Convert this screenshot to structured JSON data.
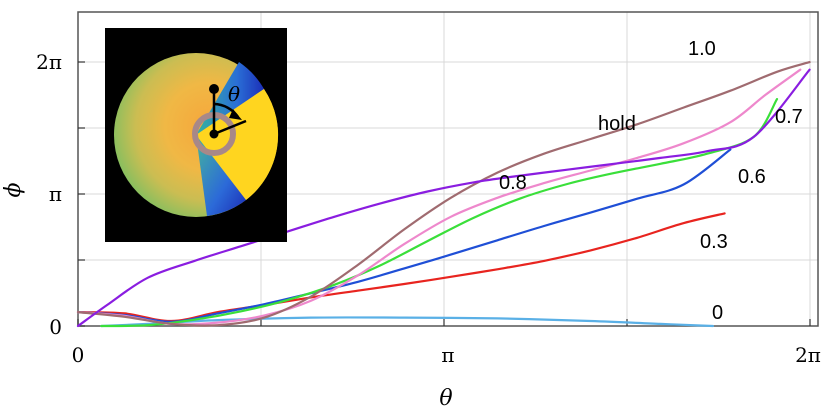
{
  "chart_data": {
    "type": "line",
    "xlabel": "θ",
    "ylabel": "ϕ",
    "xlim": [
      0,
      6.2832
    ],
    "ylim": [
      0,
      6.2832
    ],
    "x_ticks": [
      {
        "value": 0,
        "label": "0"
      },
      {
        "value": 3.1416,
        "label": "π"
      },
      {
        "value": 6.2832,
        "label": "2π"
      }
    ],
    "y_ticks": [
      {
        "value": 0,
        "label": "0"
      },
      {
        "value": 3.1416,
        "label": "π"
      },
      {
        "value": 6.2832,
        "label": "2π"
      }
    ],
    "grid": true,
    "series": [
      {
        "name": "0",
        "color": "#5ab0e6",
        "x": [
          0.2,
          0.6,
          1.2,
          2.0,
          2.8,
          3.6,
          4.4,
          5.0,
          5.45
        ],
        "y": [
          0.0,
          0.05,
          0.14,
          0.2,
          0.2,
          0.18,
          0.12,
          0.05,
          0.0
        ]
      },
      {
        "name": "0.3",
        "color": "#e8241f",
        "x": [
          0.0,
          0.4,
          0.8,
          1.2,
          1.6,
          2.0,
          2.4,
          2.8,
          3.2,
          3.6,
          4.0,
          4.4,
          4.8,
          5.2,
          5.55
        ],
        "y": [
          0.33,
          0.3,
          0.12,
          0.33,
          0.5,
          0.68,
          0.84,
          1.0,
          1.17,
          1.35,
          1.55,
          1.8,
          2.1,
          2.45,
          2.68
        ]
      },
      {
        "name": "0.6",
        "color": "#1f4fd6",
        "x": [
          0.0,
          0.4,
          0.8,
          1.2,
          1.6,
          2.0,
          2.4,
          2.8,
          3.2,
          3.6,
          4.0,
          4.4,
          4.8,
          5.2,
          5.6
        ],
        "y": [
          0.33,
          0.26,
          0.1,
          0.3,
          0.52,
          0.78,
          1.05,
          1.37,
          1.7,
          2.04,
          2.38,
          2.7,
          3.03,
          3.37,
          4.2
        ]
      },
      {
        "name": "0.7",
        "color": "#3adf3a",
        "x": [
          0.2,
          0.6,
          1.0,
          1.4,
          1.8,
          2.2,
          2.6,
          3.0,
          3.4,
          3.8,
          4.2,
          4.6,
          5.0,
          5.4,
          5.8,
          6.0
        ],
        "y": [
          0.0,
          0.02,
          0.15,
          0.35,
          0.62,
          0.98,
          1.45,
          2.02,
          2.58,
          3.04,
          3.38,
          3.64,
          3.86,
          4.1,
          4.5,
          5.4
        ]
      },
      {
        "name": "0.8",
        "color": "#ee88cc",
        "x": [
          0.0,
          0.4,
          0.8,
          1.2,
          1.6,
          2.0,
          2.4,
          2.8,
          3.2,
          3.6,
          4.0,
          4.4,
          4.8,
          5.2,
          5.6,
          5.9,
          6.2
        ],
        "y": [
          0.33,
          0.24,
          0.05,
          0.08,
          0.25,
          0.6,
          1.2,
          1.95,
          2.6,
          3.05,
          3.4,
          3.7,
          4.0,
          4.35,
          4.85,
          5.5,
          6.1
        ]
      },
      {
        "name": "1.0",
        "color": "#a06b70",
        "x": [
          0.0,
          0.4,
          0.8,
          1.2,
          1.6,
          2.0,
          2.4,
          2.8,
          3.2,
          3.6,
          4.0,
          4.4,
          4.8,
          5.2,
          5.6,
          6.0,
          6.28
        ],
        "y": [
          0.33,
          0.22,
          0.05,
          0.02,
          0.2,
          0.7,
          1.45,
          2.3,
          3.05,
          3.65,
          4.1,
          4.45,
          4.8,
          5.2,
          5.6,
          6.05,
          6.28
        ]
      },
      {
        "name": "hold",
        "color": "#8a1de0",
        "x": [
          0.0,
          0.25,
          0.6,
          1.0,
          1.4,
          1.8,
          2.2,
          2.6,
          3.0,
          3.4,
          3.8,
          4.2,
          4.6,
          5.0,
          5.4,
          5.8,
          6.28
        ],
        "y": [
          0.0,
          0.5,
          1.15,
          1.55,
          1.9,
          2.25,
          2.6,
          2.92,
          3.2,
          3.42,
          3.58,
          3.72,
          3.86,
          4.0,
          4.16,
          4.5,
          6.1
        ]
      }
    ],
    "inset": {
      "theta_label": "θ",
      "colors": {
        "background": "#000000",
        "disk_center": "#f4a83a",
        "disk_edge": "#8fbf5c",
        "cool_sector": "#1e3ebf",
        "warm_sector": "#ffd21f",
        "ring": "#a88888"
      }
    }
  }
}
